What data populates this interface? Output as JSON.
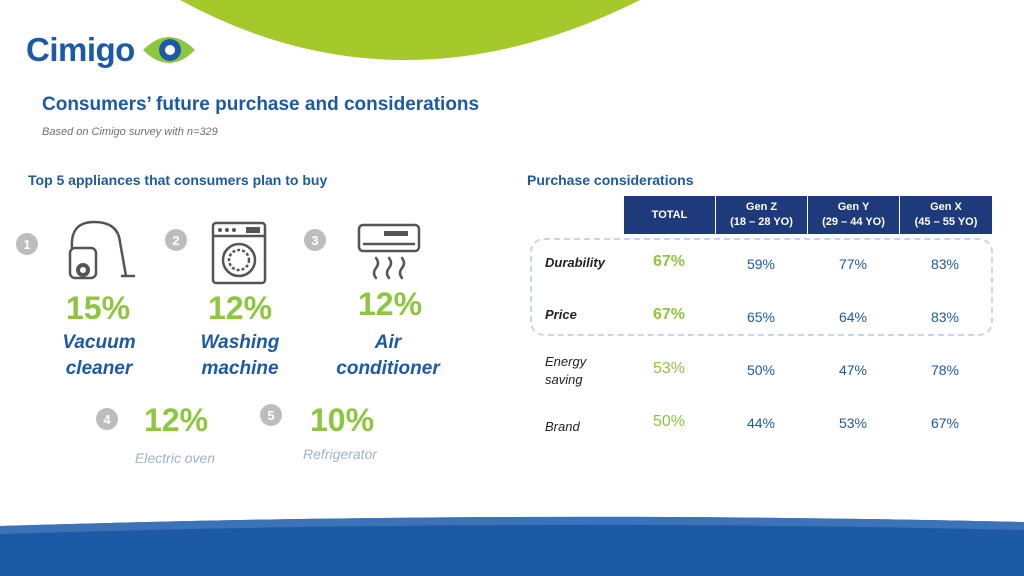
{
  "header": {
    "logo_text": "Cimigo",
    "title": "Consumers’ future purchase and considerations",
    "subtitle": "Based on Cimigo survey with n=329"
  },
  "colors": {
    "brand_blue": "#1d5aa6",
    "accent_green": "#8dc63f",
    "table_header": "#1f3a7a",
    "muted_label": "#9fb3cc"
  },
  "appliances": {
    "heading": "Top 5 appliances that consumers plan to buy",
    "items": [
      {
        "rank": "1",
        "percent": "15%",
        "name_line1": "Vacuum",
        "name_line2": "cleaner",
        "icon": "vacuum-cleaner-icon"
      },
      {
        "rank": "2",
        "percent": "12%",
        "name_line1": "Washing",
        "name_line2": "machine",
        "icon": "washing-machine-icon"
      },
      {
        "rank": "3",
        "percent": "12%",
        "name_line1": "Air",
        "name_line2": "conditioner",
        "icon": "air-conditioner-icon"
      },
      {
        "rank": "4",
        "percent": "12%",
        "name": "Electric oven"
      },
      {
        "rank": "5",
        "percent": "10%",
        "name": "Refrigerator"
      }
    ]
  },
  "considerations": {
    "heading": "Purchase considerations",
    "columns": [
      {
        "line1": "TOTAL",
        "line2": ""
      },
      {
        "line1": "Gen Z",
        "line2": "(18 – 28 YO)"
      },
      {
        "line1": "Gen Y",
        "line2": "(29 – 44 YO)"
      },
      {
        "line1": "Gen X",
        "line2": "(45 – 55 YO)"
      }
    ],
    "rows": [
      {
        "label_line1": "Durability",
        "label_line2": "",
        "values": [
          "67%",
          "59%",
          "77%",
          "83%"
        ],
        "highlighted": true
      },
      {
        "label_line1": "Price",
        "label_line2": "",
        "values": [
          "67%",
          "65%",
          "64%",
          "83%"
        ],
        "highlighted": true
      },
      {
        "label_line1": "Energy",
        "label_line2": "saving",
        "values": [
          "53%",
          "50%",
          "47%",
          "78%"
        ],
        "highlighted": false
      },
      {
        "label_line1": "Brand",
        "label_line2": "",
        "values": [
          "50%",
          "44%",
          "53%",
          "67%"
        ],
        "highlighted": false
      }
    ]
  }
}
